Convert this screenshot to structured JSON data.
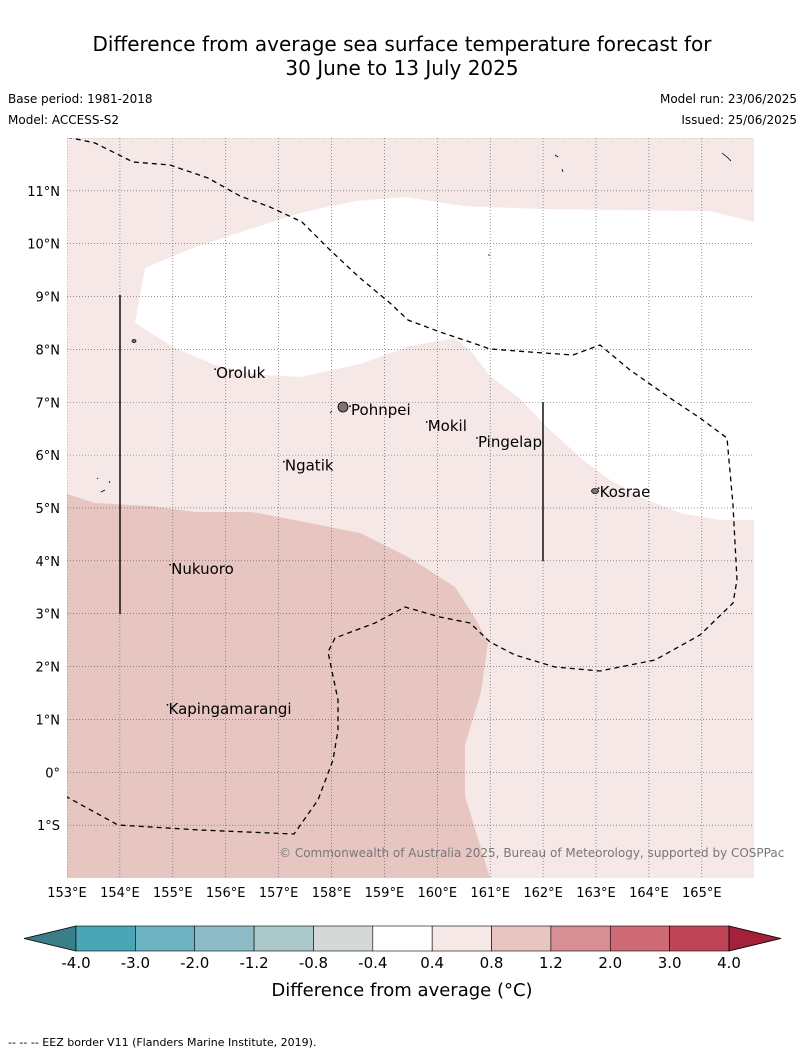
{
  "title": {
    "line1": "Difference from average sea surface temperature forecast for",
    "line2": "30 June to 13 July 2025"
  },
  "meta": {
    "base_period": "Base period: 1981-2018",
    "model": "Model: ACCESS-S2",
    "model_run": "Model run: 23/06/2025",
    "issued": "Issued: 25/06/2025"
  },
  "map": {
    "lon_range": [
      153,
      166
    ],
    "lat_range": [
      -2,
      12
    ],
    "lon_ticks": [
      "153°E",
      "154°E",
      "155°E",
      "156°E",
      "157°E",
      "158°E",
      "159°E",
      "160°E",
      "161°E",
      "162°E",
      "163°E",
      "164°E",
      "165°E"
    ],
    "lat_ticks": [
      "1°S",
      "0°",
      "1°N",
      "2°N",
      "3°N",
      "4°N",
      "5°N",
      "6°N",
      "7°N",
      "8°N",
      "9°N",
      "10°N",
      "11°N"
    ],
    "places": [
      {
        "name": "Oroluk",
        "lon": 155.8,
        "lat": 7.55
      },
      {
        "name": "Pohnpei",
        "lon": 158.35,
        "lat": 6.85
      },
      {
        "name": "Mokil",
        "lon": 159.8,
        "lat": 6.55
      },
      {
        "name": "Pingelap",
        "lon": 160.75,
        "lat": 6.25
      },
      {
        "name": "Ngatik",
        "lon": 157.1,
        "lat": 5.8
      },
      {
        "name": "Kosrae",
        "lon": 163.05,
        "lat": 5.3
      },
      {
        "name": "Nukuoro",
        "lon": 154.95,
        "lat": 3.85
      },
      {
        "name": "Kapingamarangi",
        "lon": 154.9,
        "lat": 1.2
      }
    ],
    "copyright": "© Commonwealth of Australia 2025, Bureau of Meteorology, supported by COSPPac",
    "colors": {
      "band_0_4_0_8": "#f5e8e7",
      "band_0_8_1_2": "#e7c6c2",
      "neutral": "#ffffff"
    }
  },
  "colorbar": {
    "ticks": [
      "-4.0",
      "-3.0",
      "-2.0",
      "-1.2",
      "-0.8",
      "-0.4",
      "0.4",
      "0.8",
      "1.2",
      "2.0",
      "3.0",
      "4.0"
    ],
    "colors": [
      "#4aa6b5",
      "#6db2c1",
      "#8ebcc6",
      "#abc9cb",
      "#d4d9d8",
      "#ffffff",
      "#f5e8e7",
      "#e7c6c2",
      "#d88f94",
      "#cd6a74",
      "#be4555"
    ],
    "under_color": "#3a7e89",
    "over_color": "#a3213a",
    "label": "Difference from average (°C)"
  },
  "footnote": "--  --  -- EEZ border V11 (Flanders Marine Institute, 2019)."
}
